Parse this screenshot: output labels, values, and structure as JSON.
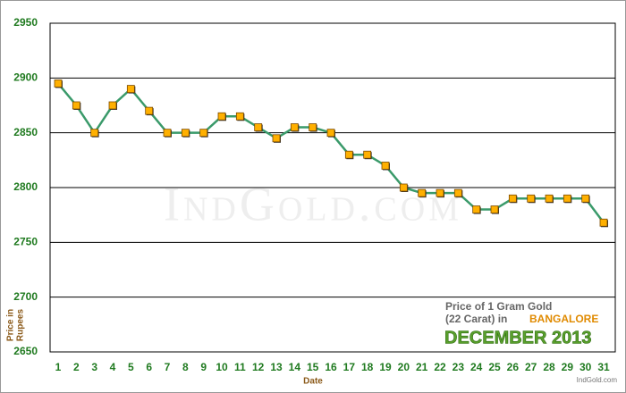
{
  "chart_data": {
    "type": "line",
    "categories": [
      "1",
      "2",
      "3",
      "4",
      "5",
      "6",
      "7",
      "8",
      "9",
      "10",
      "11",
      "12",
      "13",
      "14",
      "15",
      "16",
      "17",
      "18",
      "19",
      "20",
      "21",
      "22",
      "23",
      "24",
      "25",
      "26",
      "27",
      "28",
      "29",
      "30",
      "31"
    ],
    "values": [
      2895,
      2875,
      2850,
      2875,
      2890,
      2870,
      2850,
      2850,
      2850,
      2865,
      2865,
      2855,
      2845,
      2855,
      2855,
      2850,
      2830,
      2830,
      2820,
      2800,
      2795,
      2795,
      2795,
      2780,
      2780,
      2790,
      2790,
      2790,
      2790,
      2790,
      2768
    ],
    "color": "#3a9a6a",
    "marker_color": "#ffb000",
    "ylim": [
      2650,
      2950
    ],
    "yticks": [
      2650,
      2700,
      2750,
      2800,
      2850,
      2900,
      2950
    ],
    "grid": true,
    "x_label": "Date",
    "y_label": [
      "Price in",
      "Rupees"
    ],
    "watermark": "IndGold.com",
    "annotation": {
      "line1": "Price of 1 Gram Gold",
      "line2": "(22 Carat) in",
      "city": "BANGALORE",
      "month": "DECEMBER 2013",
      "site": "IndGold.com"
    }
  }
}
